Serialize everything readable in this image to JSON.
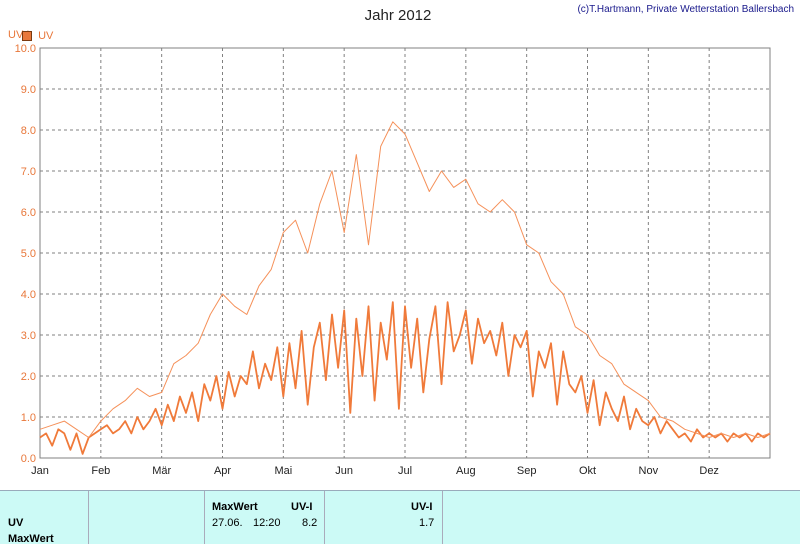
{
  "header": {
    "title": "Jahr 2012",
    "credit": "(c)T.Hartmann, Private Wetterstation Ballersbach",
    "unit_label": "UV-I"
  },
  "legend": {
    "label": "UV",
    "color": "#e8773a"
  },
  "colors": {
    "grid": "#808080",
    "series_main": "#f07a3a",
    "series_max": "#f5915a",
    "axis_text": "#e8773a"
  },
  "chart_data": {
    "type": "line",
    "title": "Jahr 2012",
    "ylabel": "UV-I",
    "xlabel": "",
    "ylim": [
      0,
      10
    ],
    "y_ticks": [
      "0.0",
      "1.0",
      "2.0",
      "3.0",
      "4.0",
      "5.0",
      "6.0",
      "7.0",
      "8.0",
      "9.0",
      "10.0"
    ],
    "x_ticks": [
      "Jan",
      "Feb",
      "Mär",
      "Apr",
      "Mai",
      "Jun",
      "Jul",
      "Aug",
      "Sep",
      "Okt",
      "Nov",
      "Dez"
    ],
    "grid": true,
    "legend_position": "top-left",
    "x_unit": "month",
    "series": [
      {
        "name": "UV",
        "x": [
          0,
          0.1,
          0.2,
          0.3,
          0.4,
          0.5,
          0.6,
          0.7,
          0.8,
          0.9,
          1.0,
          1.1,
          1.2,
          1.3,
          1.4,
          1.5,
          1.6,
          1.7,
          1.8,
          1.9,
          2.0,
          2.1,
          2.2,
          2.3,
          2.4,
          2.5,
          2.6,
          2.7,
          2.8,
          2.9,
          3.0,
          3.1,
          3.2,
          3.3,
          3.4,
          3.5,
          3.6,
          3.7,
          3.8,
          3.9,
          4.0,
          4.1,
          4.2,
          4.3,
          4.4,
          4.5,
          4.6,
          4.7,
          4.8,
          4.9,
          5.0,
          5.1,
          5.2,
          5.3,
          5.4,
          5.5,
          5.6,
          5.7,
          5.8,
          5.9,
          6.0,
          6.1,
          6.2,
          6.3,
          6.4,
          6.5,
          6.6,
          6.7,
          6.8,
          6.9,
          7.0,
          7.1,
          7.2,
          7.3,
          7.4,
          7.5,
          7.6,
          7.7,
          7.8,
          7.9,
          8.0,
          8.1,
          8.2,
          8.3,
          8.4,
          8.5,
          8.6,
          8.7,
          8.8,
          8.9,
          9.0,
          9.1,
          9.2,
          9.3,
          9.4,
          9.5,
          9.6,
          9.7,
          9.8,
          9.9,
          10.0,
          10.1,
          10.2,
          10.3,
          10.4,
          10.5,
          10.6,
          10.7,
          10.8,
          10.9,
          11.0,
          11.1,
          11.2,
          11.3,
          11.4,
          11.5,
          11.6,
          11.7,
          11.8,
          11.9,
          12.0
        ],
        "y": [
          0.5,
          0.6,
          0.3,
          0.7,
          0.6,
          0.2,
          0.6,
          0.1,
          0.5,
          0.6,
          0.7,
          0.8,
          0.6,
          0.7,
          0.9,
          0.6,
          1.0,
          0.7,
          0.9,
          1.2,
          0.8,
          1.3,
          0.9,
          1.5,
          1.1,
          1.6,
          0.9,
          1.8,
          1.4,
          2.0,
          1.2,
          2.1,
          1.5,
          2.0,
          1.8,
          2.6,
          1.7,
          2.3,
          1.9,
          2.7,
          1.5,
          2.8,
          1.7,
          3.1,
          1.3,
          2.7,
          3.3,
          1.9,
          3.5,
          2.2,
          3.6,
          1.1,
          3.4,
          2.0,
          3.7,
          1.4,
          3.3,
          2.4,
          3.8,
          1.2,
          3.7,
          2.2,
          3.4,
          1.6,
          2.9,
          3.7,
          1.8,
          3.8,
          2.6,
          3.0,
          3.6,
          2.3,
          3.4,
          2.8,
          3.1,
          2.5,
          3.3,
          2.0,
          3.0,
          2.7,
          3.1,
          1.5,
          2.6,
          2.2,
          2.8,
          1.3,
          2.6,
          1.8,
          1.6,
          2.0,
          1.1,
          1.9,
          0.8,
          1.6,
          1.2,
          0.9,
          1.5,
          0.7,
          1.2,
          0.9,
          0.8,
          1.0,
          0.6,
          0.9,
          0.7,
          0.5,
          0.6,
          0.4,
          0.7,
          0.5,
          0.6,
          0.5,
          0.6,
          0.4,
          0.6,
          0.5,
          0.6,
          0.4,
          0.6,
          0.5,
          0.6
        ]
      },
      {
        "name": "MaxWert",
        "x": [
          0,
          0.2,
          0.4,
          0.6,
          0.8,
          1.0,
          1.2,
          1.4,
          1.6,
          1.8,
          2.0,
          2.2,
          2.4,
          2.6,
          2.8,
          3.0,
          3.2,
          3.4,
          3.6,
          3.8,
          4.0,
          4.2,
          4.4,
          4.6,
          4.8,
          5.0,
          5.2,
          5.4,
          5.6,
          5.8,
          6.0,
          6.2,
          6.4,
          6.6,
          6.8,
          7.0,
          7.2,
          7.4,
          7.6,
          7.8,
          8.0,
          8.2,
          8.4,
          8.6,
          8.8,
          9.0,
          9.2,
          9.4,
          9.6,
          9.8,
          10.0,
          10.2,
          10.4,
          10.6,
          10.8,
          11.0,
          11.2,
          11.4,
          11.6,
          11.8,
          12.0
        ],
        "y": [
          0.7,
          0.8,
          0.9,
          0.7,
          0.5,
          0.9,
          1.2,
          1.4,
          1.7,
          1.5,
          1.6,
          2.3,
          2.5,
          2.8,
          3.5,
          4.0,
          3.7,
          3.5,
          4.2,
          4.6,
          5.5,
          5.8,
          5.0,
          6.2,
          7.0,
          5.5,
          7.4,
          5.2,
          7.6,
          8.2,
          7.9,
          7.2,
          6.5,
          7.0,
          6.6,
          6.8,
          6.2,
          6.0,
          6.3,
          6.0,
          5.2,
          5.0,
          4.3,
          4.0,
          3.2,
          3.0,
          2.5,
          2.3,
          1.8,
          1.6,
          1.4,
          1.0,
          0.9,
          0.7,
          0.6,
          0.5,
          0.6,
          0.5,
          0.6,
          0.5,
          0.6
        ]
      }
    ]
  },
  "table": {
    "row1_label": "UV",
    "row2_label": "MaxWert",
    "col2_header": "MaxWert",
    "col2_unit": "UV-I",
    "col2_date": "27.06.",
    "col2_time": "12:20",
    "col2_value": "8.2",
    "col3_unit": "UV-I",
    "col3_value": "1.7"
  }
}
